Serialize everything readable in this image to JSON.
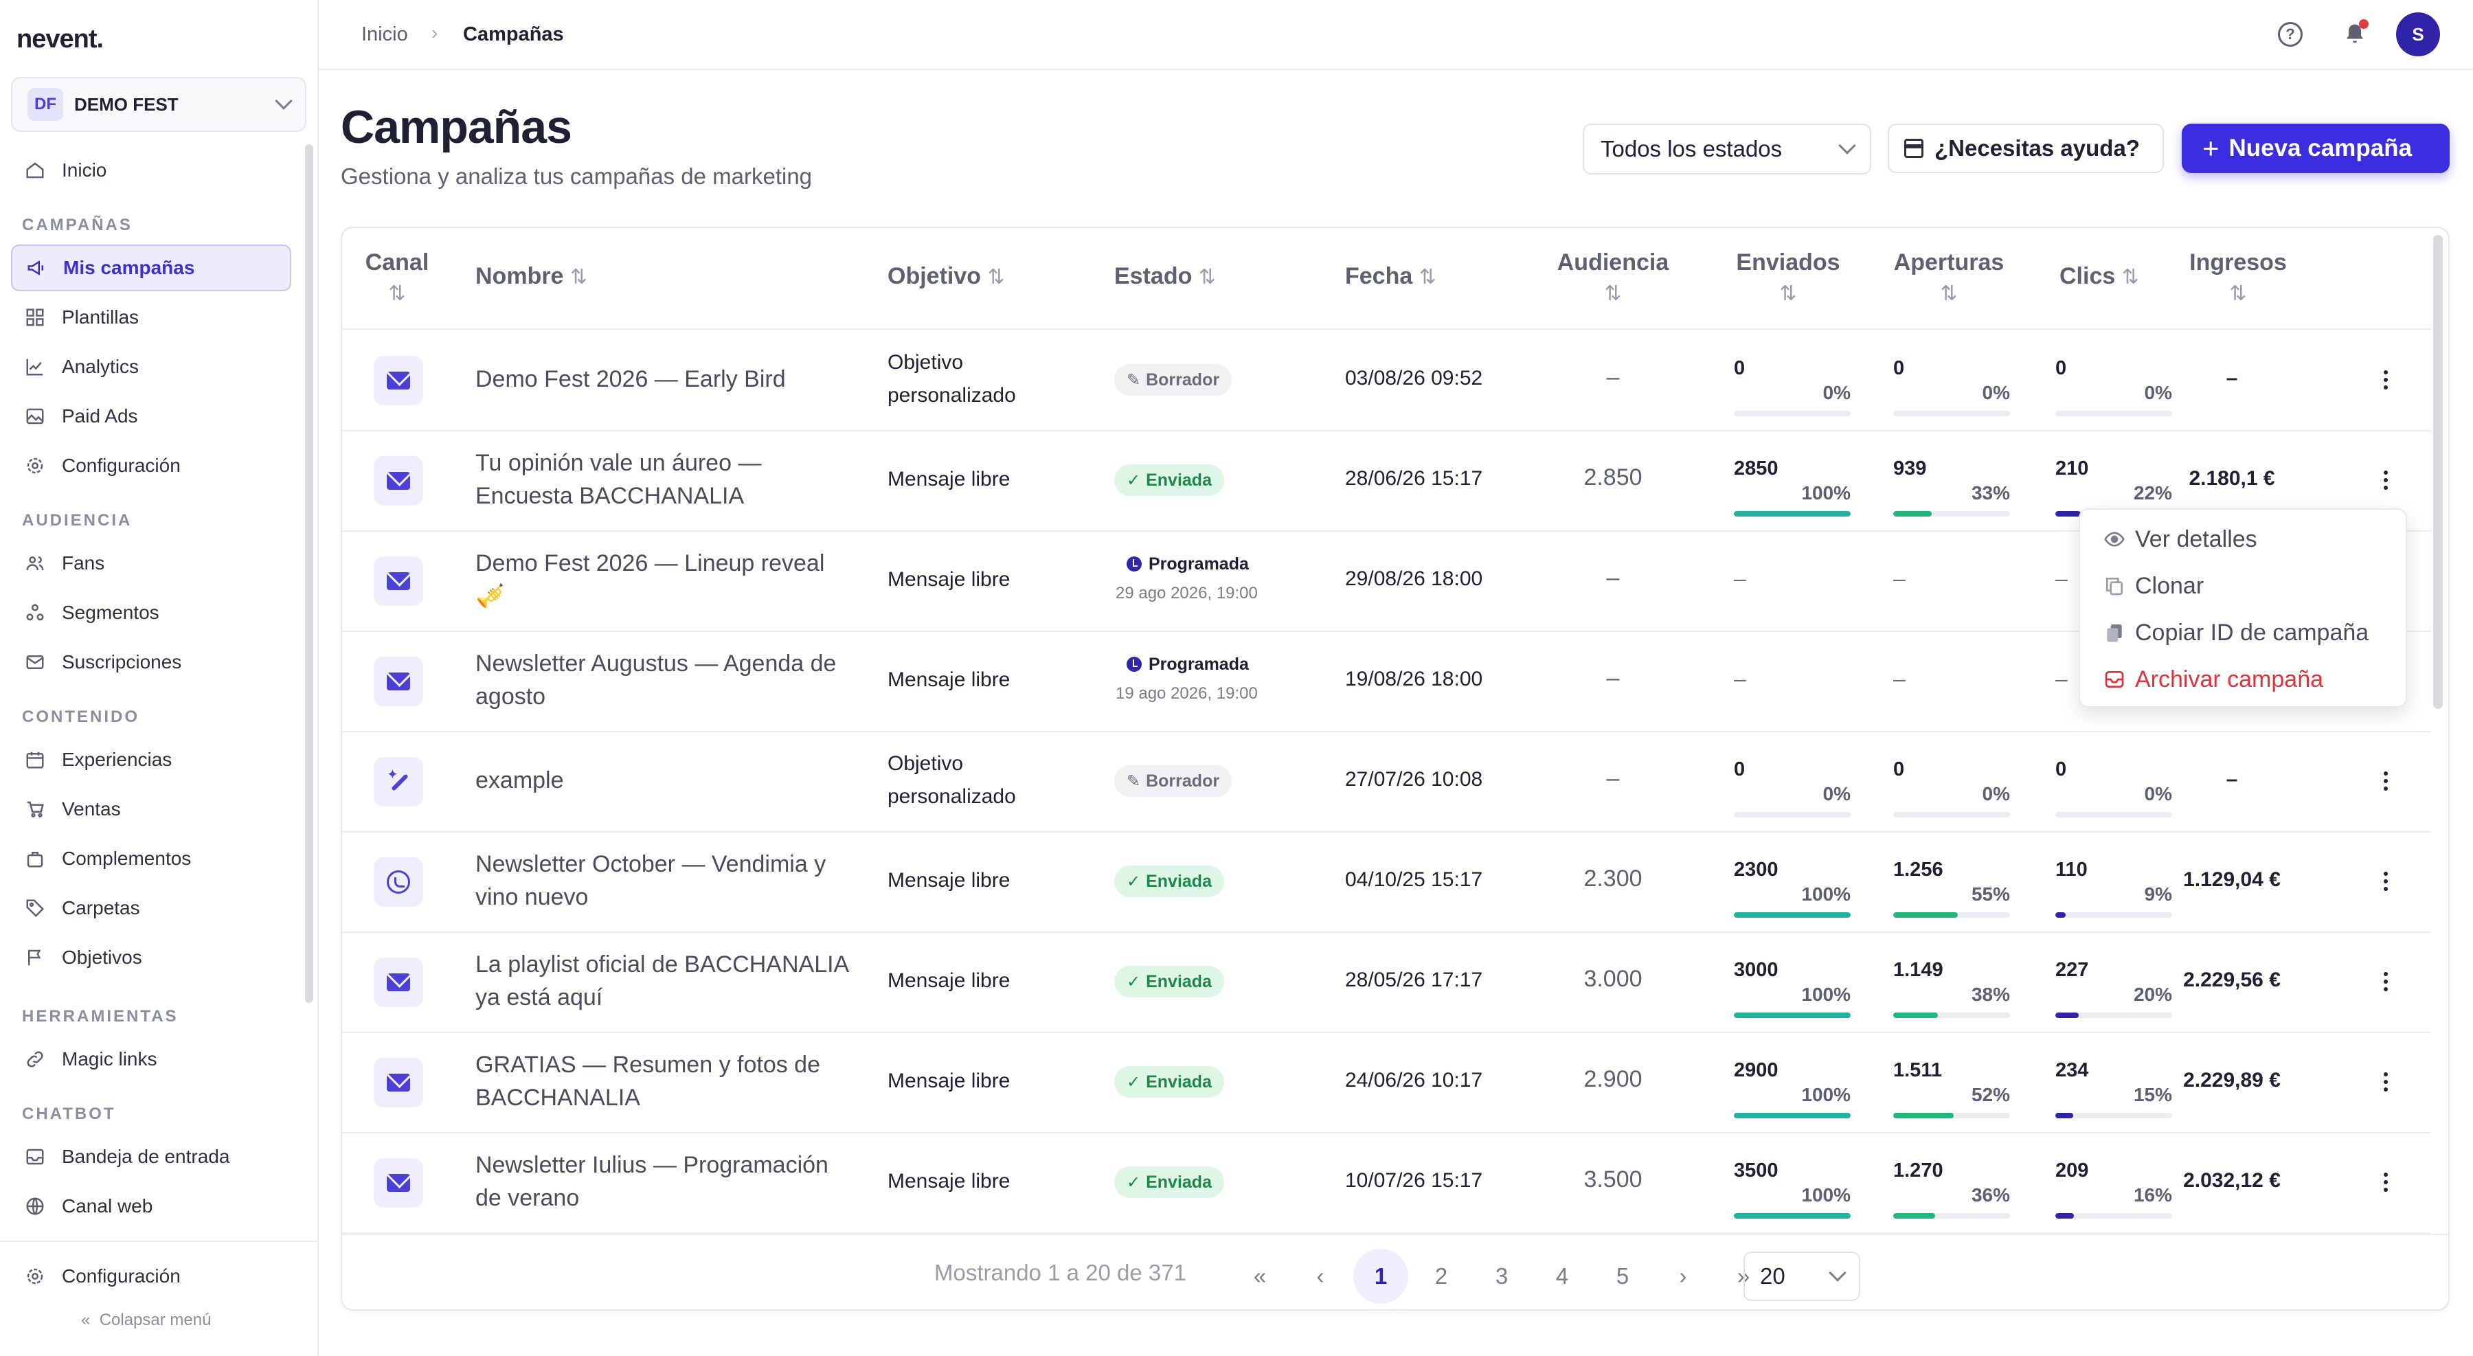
{
  "app": {
    "logo": "nevent."
  },
  "org": {
    "initials": "DF",
    "name": "DEMO FEST"
  },
  "sidebar": {
    "home": "Inicio",
    "sections": {
      "campaigns": "CAMPAÑAS",
      "audience": "AUDIENCIA",
      "content": "CONTENIDO",
      "tools": "HERRAMIENTAS",
      "chatbot": "CHATBOT"
    },
    "items": {
      "my_campaigns": "Mis campañas",
      "templates": "Plantillas",
      "analytics": "Analytics",
      "paid_ads": "Paid Ads",
      "config": "Configuración",
      "fans": "Fans",
      "segments": "Segmentos",
      "subscriptions": "Suscripciones",
      "experiences": "Experiencias",
      "sales": "Ventas",
      "complements": "Complementos",
      "folders": "Carpetas",
      "goals": "Objetivos",
      "magic_links": "Magic links",
      "inbox": "Bandeja de entrada",
      "web_channel": "Canal web"
    },
    "footer_config": "Configuración",
    "collapse": "Colapsar menú"
  },
  "topbar": {
    "breadcrumb_home": "Inicio",
    "breadcrumb_sep": "›",
    "breadcrumb_current": "Campañas",
    "help_glyph": "?",
    "avatar": "S"
  },
  "header": {
    "title": "Campañas",
    "subtitle": "Gestiona y analiza tus campañas de marketing",
    "status_filter": "Todos los estados",
    "help_button": "¿Necesitas ayuda?",
    "new_button": "Nueva campaña",
    "new_button_icon": "+"
  },
  "table": {
    "columns": {
      "canal": "Canal",
      "nombre": "Nombre",
      "objetivo": "Objetivo",
      "estado": "Estado",
      "fecha": "Fecha",
      "audiencia": "Audiencia",
      "enviados": "Enviados",
      "aperturas": "Aperturas",
      "clics": "Clics",
      "ingresos": "Ingresos"
    },
    "sort_glyph": "⇅",
    "rows": [
      {
        "channel": "email",
        "name": "Demo Fest 2026 — Early Bird",
        "objective": "Objetivo personalizado",
        "status": "Borrador",
        "status_type": "draft",
        "date": "03/08/26 09:52",
        "audience": "–",
        "sent": {
          "v": "0",
          "p": "0%",
          "frac": 0
        },
        "opens": {
          "v": "0",
          "p": "0%",
          "frac": 0
        },
        "clicks": {
          "v": "0",
          "p": "0%",
          "frac": 0
        },
        "revenue": "–"
      },
      {
        "channel": "email",
        "name": "Tu opinión vale un áureo — Encuesta BACCHANALIA",
        "objective": "Mensaje libre",
        "status": "Enviada",
        "status_type": "sent",
        "date": "28/06/26 15:17",
        "audience": "2.850",
        "sent": {
          "v": "2850",
          "p": "100%",
          "frac": 1
        },
        "opens": {
          "v": "939",
          "p": "33%",
          "frac": 0.33
        },
        "clicks": {
          "v": "210",
          "p": "22%",
          "frac": 0.22
        },
        "revenue": "2.180,1 €"
      },
      {
        "channel": "email",
        "name": "Demo Fest 2026 — Lineup reveal 🎺",
        "objective": "Mensaje libre",
        "status": "Programada",
        "status_type": "scheduled",
        "scheduled_for": "29 ago 2026, 19:00",
        "date": "29/08/26 18:00",
        "audience": "–",
        "sent_dash": "–",
        "opens_dash": "–",
        "clicks_dash": "–"
      },
      {
        "channel": "email",
        "name": "Newsletter Augustus — Agenda de agosto",
        "objective": "Mensaje libre",
        "status": "Programada",
        "status_type": "scheduled",
        "scheduled_for": "19 ago 2026, 19:00",
        "date": "19/08/26 18:00",
        "audience": "–",
        "sent_dash": "–",
        "opens_dash": "–",
        "clicks_dash": "–"
      },
      {
        "channel": "magic",
        "name": "example",
        "objective": "Objetivo personalizado",
        "status": "Borrador",
        "status_type": "draft",
        "date": "27/07/26 10:08",
        "audience": "–",
        "sent": {
          "v": "0",
          "p": "0%",
          "frac": 0
        },
        "opens": {
          "v": "0",
          "p": "0%",
          "frac": 0
        },
        "clicks": {
          "v": "0",
          "p": "0%",
          "frac": 0
        },
        "revenue": "–"
      },
      {
        "channel": "whatsapp",
        "name": "Newsletter October — Vendimia y vino nuevo",
        "objective": "Mensaje libre",
        "status": "Enviada",
        "status_type": "sent",
        "date": "04/10/25 15:17",
        "audience": "2.300",
        "sent": {
          "v": "2300",
          "p": "100%",
          "frac": 1
        },
        "opens": {
          "v": "1.256",
          "p": "55%",
          "frac": 0.55
        },
        "clicks": {
          "v": "110",
          "p": "9%",
          "frac": 0.09
        },
        "revenue": "1.129,04 €"
      },
      {
        "channel": "email",
        "name": "La playlist oficial de BACCHANALIA ya está aquí",
        "objective": "Mensaje libre",
        "status": "Enviada",
        "status_type": "sent",
        "date": "28/05/26 17:17",
        "audience": "3.000",
        "sent": {
          "v": "3000",
          "p": "100%",
          "frac": 1
        },
        "opens": {
          "v": "1.149",
          "p": "38%",
          "frac": 0.38
        },
        "clicks": {
          "v": "227",
          "p": "20%",
          "frac": 0.2
        },
        "revenue": "2.229,56 €"
      },
      {
        "channel": "email",
        "name": "GRATIAS — Resumen y fotos de BACCHANALIA",
        "objective": "Mensaje libre",
        "status": "Enviada",
        "status_type": "sent",
        "date": "24/06/26 10:17",
        "audience": "2.900",
        "sent": {
          "v": "2900",
          "p": "100%",
          "frac": 1
        },
        "opens": {
          "v": "1.511",
          "p": "52%",
          "frac": 0.52
        },
        "clicks": {
          "v": "234",
          "p": "15%",
          "frac": 0.15
        },
        "revenue": "2.229,89 €"
      },
      {
        "channel": "email",
        "name": "Newsletter Iulius — Programación de verano",
        "objective": "Mensaje libre",
        "status": "Enviada",
        "status_type": "sent",
        "date": "10/07/26 15:17",
        "audience": "3.500",
        "sent": {
          "v": "3500",
          "p": "100%",
          "frac": 1
        },
        "opens": {
          "v": "1.270",
          "p": "36%",
          "frac": 0.36
        },
        "clicks": {
          "v": "209",
          "p": "16%",
          "frac": 0.16
        },
        "revenue": "2.032,12 €"
      }
    ]
  },
  "context_menu": {
    "details": "Ver detalles",
    "clone": "Clonar",
    "copy_id": "Copiar ID de campaña",
    "archive": "Archivar campaña"
  },
  "pagination": {
    "showing": "Mostrando 1 a 20 de 371",
    "first": "«",
    "prev": "‹",
    "pages": [
      "1",
      "2",
      "3",
      "4",
      "5"
    ],
    "current": "1",
    "next": "›",
    "last": "»",
    "per_page": "20"
  },
  "colors": {
    "brand": "#3b2ee0",
    "sent_bar": "#21b3a0",
    "opens_bar": "#1fb87a",
    "clicks_bar": "#2f23a8",
    "danger": "#e0313d",
    "draft_badge_bg": "#f1f1f4",
    "sent_badge_bg": "#def6e5",
    "scheduled_badge_bg": "#ededfc"
  }
}
